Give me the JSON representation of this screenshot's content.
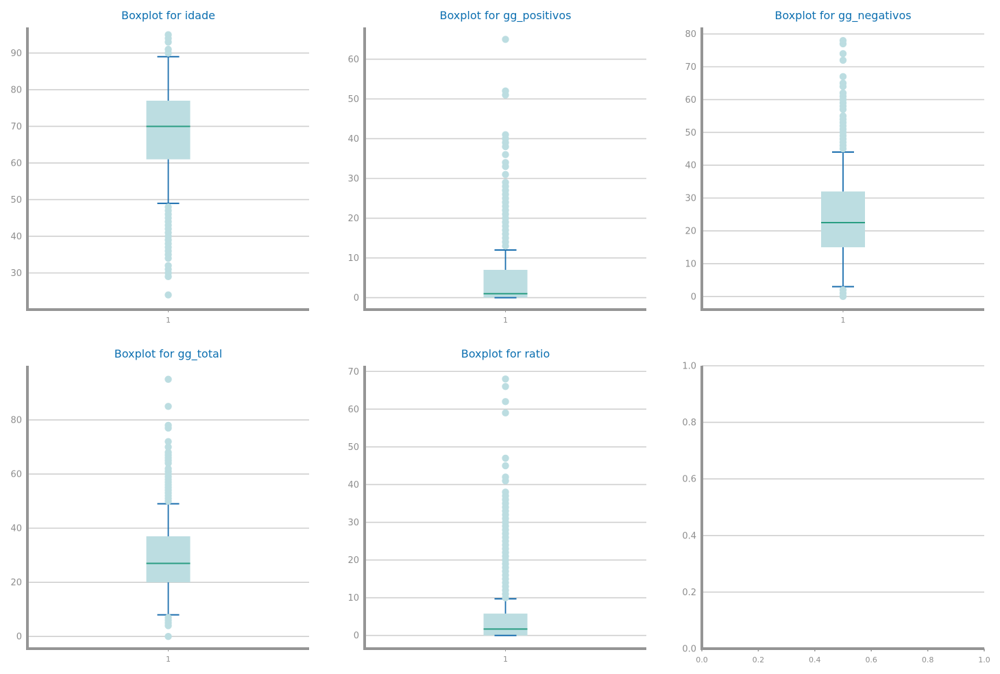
{
  "colors": {
    "title": "#0c6fb0",
    "grid": "#cfcfcf",
    "spine": "#959595",
    "tick_label": "#8e8e8e",
    "box_fill": "#bcdde1",
    "whisker": "#1a6eae",
    "median": "#2a9d82",
    "flier": "#bcdde1"
  },
  "chart_data": [
    {
      "type": "boxplot",
      "title": "Boxplot for idade",
      "xticks": [
        "1"
      ],
      "ylim": [
        20,
        97
      ],
      "yticks": [
        30,
        40,
        50,
        60,
        70,
        80,
        90
      ],
      "grid": true,
      "box": {
        "whislo": 49,
        "q1": 61,
        "med": 70,
        "q3": 77,
        "whishi": 89
      },
      "fliers": [
        24,
        29,
        30,
        31,
        32,
        34,
        35,
        36,
        37,
        38,
        39,
        40,
        41,
        42,
        43,
        44,
        45,
        46,
        47,
        48,
        90,
        91,
        93,
        94,
        95
      ]
    },
    {
      "type": "boxplot",
      "title": "Boxplot for gg_positivos",
      "xticks": [
        "1"
      ],
      "ylim": [
        -3,
        68
      ],
      "yticks": [
        0,
        10,
        20,
        30,
        40,
        50,
        60
      ],
      "grid": true,
      "box": {
        "whislo": 0,
        "q1": 0,
        "med": 1,
        "q3": 7,
        "whishi": 12
      },
      "fliers": [
        13,
        14,
        15,
        16,
        17,
        18,
        19,
        20,
        21,
        22,
        23,
        24,
        25,
        26,
        27,
        28,
        29,
        31,
        33,
        34,
        36,
        38,
        39,
        40,
        41,
        51,
        52,
        65
      ]
    },
    {
      "type": "boxplot",
      "title": "Boxplot for gg_negativos",
      "xticks": [
        "1"
      ],
      "ylim": [
        -4,
        82
      ],
      "yticks": [
        0,
        10,
        20,
        30,
        40,
        50,
        60,
        70,
        80
      ],
      "grid": true,
      "box": {
        "whislo": 3,
        "q1": 15,
        "med": 22.5,
        "q3": 32,
        "whishi": 44
      },
      "fliers": [
        0,
        1,
        2,
        45,
        46,
        47,
        48,
        49,
        50,
        51,
        52,
        53,
        54,
        55,
        57,
        58,
        59,
        60,
        61,
        62,
        64,
        65,
        67,
        72,
        74,
        77,
        78
      ]
    },
    {
      "type": "boxplot",
      "title": "Boxplot for gg_total",
      "xticks": [
        "1"
      ],
      "ylim": [
        -4.5,
        100
      ],
      "yticks": [
        0,
        20,
        40,
        60,
        80
      ],
      "grid": true,
      "box": {
        "whislo": 8,
        "q1": 20,
        "med": 27,
        "q3": 37,
        "whishi": 49
      },
      "fliers": [
        0,
        4,
        5,
        6,
        7,
        50,
        51,
        52,
        53,
        54,
        55,
        56,
        57,
        58,
        59,
        60,
        61,
        62,
        64,
        65,
        66,
        67,
        68,
        70,
        72,
        77,
        78,
        85,
        95
      ]
    },
    {
      "type": "boxplot",
      "title": "Boxplot for ratio",
      "xticks": [
        "1"
      ],
      "ylim": [
        -3.5,
        71.5
      ],
      "yticks": [
        0,
        10,
        20,
        30,
        40,
        50,
        60,
        70
      ],
      "grid": true,
      "box": {
        "whislo": 0,
        "q1": 0,
        "med": 1.7,
        "q3": 5.8,
        "whishi": 9.7
      },
      "fliers": [
        10,
        11,
        12,
        13,
        14,
        15,
        16,
        17,
        18,
        19,
        20,
        21,
        22,
        23,
        24,
        25,
        26,
        27,
        28,
        29,
        30,
        31,
        32,
        33,
        34,
        35,
        36,
        37,
        38,
        41,
        42,
        45,
        47,
        59,
        62,
        66,
        68
      ]
    },
    {
      "type": "empty",
      "title": "",
      "xlim": [
        0,
        1
      ],
      "ylim": [
        0,
        1
      ],
      "xticks": [
        "0.0",
        "0.2",
        "0.4",
        "0.6",
        "0.8",
        "1.0"
      ],
      "yticks": [
        0.0,
        0.2,
        0.4,
        0.6,
        0.8,
        1.0
      ],
      "ytick_labels": [
        "0.0",
        "0.2",
        "0.4",
        "0.6",
        "0.8",
        "1.0"
      ],
      "grid": true
    }
  ]
}
